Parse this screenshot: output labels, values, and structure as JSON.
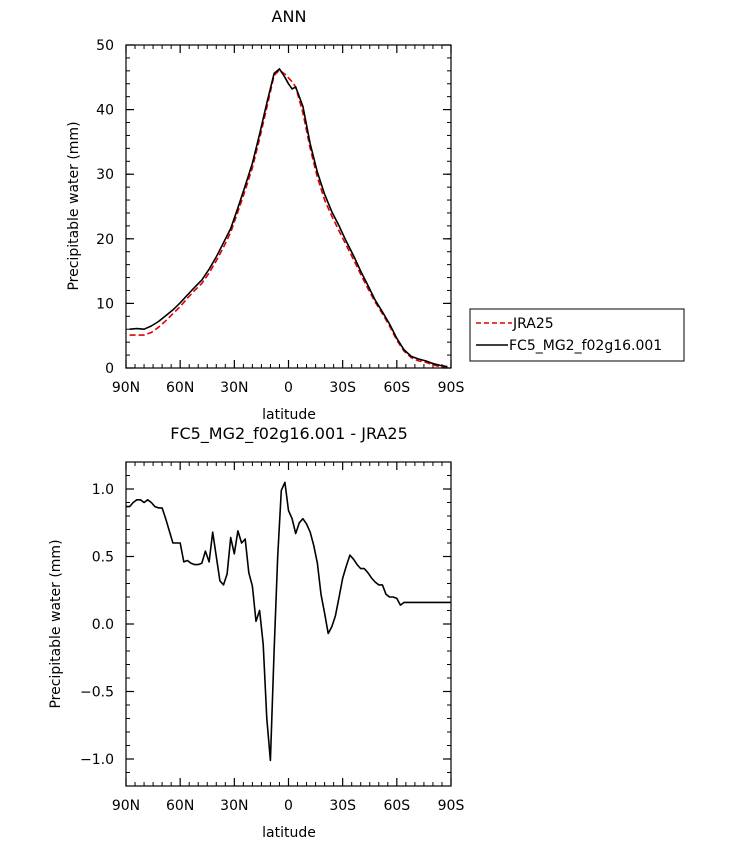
{
  "chart_data": [
    {
      "type": "line",
      "title": "ANN",
      "xlabel": "latitude",
      "ylabel": "Precipitable water (mm)",
      "xlim": [
        90,
        -90
      ],
      "ylim": [
        0,
        50
      ],
      "x_ticks": [
        90,
        60,
        30,
        0,
        -30,
        -60,
        -90
      ],
      "x_tick_labels": [
        "90N",
        "60N",
        "30N",
        "0",
        "30S",
        "60S",
        "90S"
      ],
      "y_ticks": [
        0,
        10,
        20,
        30,
        40,
        50
      ],
      "y_tick_labels": [
        "0",
        "10",
        "20",
        "30",
        "40",
        "50"
      ],
      "legend_position": "right",
      "series": [
        {
          "name": "JRA25",
          "color": "#e00000",
          "dash": "dashed",
          "x": [
            88,
            84,
            80,
            76,
            72,
            68,
            64,
            60,
            56,
            52,
            48,
            44,
            40,
            36,
            32,
            28,
            24,
            20,
            16,
            12,
            8,
            5,
            2,
            0,
            -2,
            -4,
            -8,
            -12,
            -16,
            -20,
            -24,
            -28,
            -32,
            -36,
            -40,
            -44,
            -48,
            -52,
            -56,
            -60,
            -64,
            -68,
            -72,
            -76,
            -80,
            -84,
            -88
          ],
          "y": [
            5.1,
            5.1,
            5.1,
            5.5,
            6.3,
            7.3,
            8.4,
            9.5,
            10.8,
            12.0,
            13.1,
            14.7,
            16.6,
            18.7,
            21.0,
            24.2,
            27.5,
            31.0,
            35.5,
            40.3,
            45.3,
            46.1,
            45.5,
            44.9,
            44.3,
            43.5,
            39.5,
            34.0,
            29.5,
            26.0,
            23.5,
            21.2,
            19.0,
            16.8,
            14.5,
            12.3,
            10.2,
            8.4,
            6.5,
            4.3,
            2.6,
            1.6,
            1.1,
            0.9,
            0.5,
            0.2,
            0.1
          ]
        },
        {
          "name": "FC5_MG2_f02g16.001",
          "color": "#000000",
          "dash": "solid",
          "x": [
            88,
            84,
            80,
            76,
            72,
            68,
            64,
            60,
            56,
            52,
            48,
            44,
            40,
            36,
            32,
            28,
            24,
            20,
            16,
            12,
            8,
            5,
            2,
            0,
            -2,
            -4,
            -8,
            -12,
            -16,
            -20,
            -24,
            -28,
            -32,
            -36,
            -40,
            -44,
            -48,
            -52,
            -56,
            -60,
            -64,
            -68,
            -72,
            -76,
            -80,
            -84,
            -88
          ],
          "y": [
            6.0,
            6.1,
            6.0,
            6.5,
            7.2,
            8.1,
            9.0,
            10.1,
            11.3,
            12.5,
            13.6,
            15.3,
            17.2,
            19.4,
            21.6,
            24.8,
            28.2,
            31.7,
            36.2,
            41.0,
            45.6,
            46.3,
            45.0,
            44.0,
            43.2,
            43.5,
            40.5,
            34.7,
            30.3,
            26.9,
            24.2,
            22.0,
            19.6,
            17.4,
            15.0,
            12.8,
            10.5,
            8.7,
            6.8,
            4.6,
            2.8,
            1.8,
            1.4,
            1.1,
            0.7,
            0.4,
            0.2
          ]
        }
      ]
    },
    {
      "type": "line",
      "title": "FC5_MG2_f02g16.001 - JRA25",
      "xlabel": "latitude",
      "ylabel": "Precipitable water (mm)",
      "xlim": [
        90,
        -90
      ],
      "ylim": [
        -1.2,
        1.2
      ],
      "x_ticks": [
        90,
        60,
        30,
        0,
        -30,
        -60,
        -90
      ],
      "x_tick_labels": [
        "90N",
        "60N",
        "30N",
        "0",
        "30S",
        "60S",
        "90S"
      ],
      "y_ticks": [
        1.0,
        0.5,
        0.0,
        -0.5,
        -1.0
      ],
      "y_tick_labels": [
        "1.0",
        "0.5",
        "0.0",
        "−0.5",
        "−1.0"
      ],
      "series": [
        {
          "color": "#000000",
          "dash": "solid",
          "x": [
            90,
            88,
            86,
            84,
            82,
            80,
            78,
            76,
            74,
            72,
            70,
            68,
            66,
            64,
            62,
            60,
            58,
            56,
            54,
            52,
            50,
            48,
            46,
            44,
            42,
            40,
            38,
            36,
            34,
            32,
            30,
            28,
            26,
            24,
            22,
            20,
            18,
            16,
            14,
            12,
            10,
            8,
            6,
            4,
            2,
            0,
            -2,
            -4,
            -6,
            -8,
            -10,
            -12,
            -14,
            -16,
            -18,
            -20,
            -22,
            -24,
            -26,
            -28,
            -30,
            -32,
            -34,
            -36,
            -38,
            -40,
            -42,
            -44,
            -46,
            -48,
            -50,
            -52,
            -54,
            -56,
            -58,
            -60,
            -62,
            -64,
            -66,
            -68,
            -70,
            -72,
            -74,
            -76,
            -78,
            -80,
            -82,
            -84,
            -86,
            -88,
            -90
          ],
          "y": [
            0.87,
            0.87,
            0.9,
            0.92,
            0.92,
            0.9,
            0.92,
            0.9,
            0.87,
            0.86,
            0.86,
            0.78,
            0.69,
            0.6,
            0.6,
            0.6,
            0.46,
            0.47,
            0.45,
            0.44,
            0.44,
            0.45,
            0.54,
            0.46,
            0.68,
            0.5,
            0.32,
            0.29,
            0.37,
            0.64,
            0.52,
            0.69,
            0.6,
            0.63,
            0.38,
            0.28,
            0.02,
            0.1,
            -0.15,
            -0.7,
            -1.01,
            -0.2,
            0.5,
            0.99,
            1.05,
            0.84,
            0.78,
            0.67,
            0.75,
            0.78,
            0.74,
            0.68,
            0.58,
            0.45,
            0.22,
            0.08,
            -0.07,
            -0.02,
            0.06,
            0.2,
            0.34,
            0.43,
            0.51,
            0.48,
            0.44,
            0.41,
            0.41,
            0.38,
            0.34,
            0.31,
            0.29,
            0.29,
            0.22,
            0.2,
            0.2,
            0.19,
            0.14,
            0.16,
            0.16,
            0.16,
            0.16,
            0.16,
            0.16,
            0.16,
            0.16,
            0.16,
            0.16,
            0.16,
            0.16,
            0.16,
            0.16
          ]
        }
      ]
    }
  ]
}
